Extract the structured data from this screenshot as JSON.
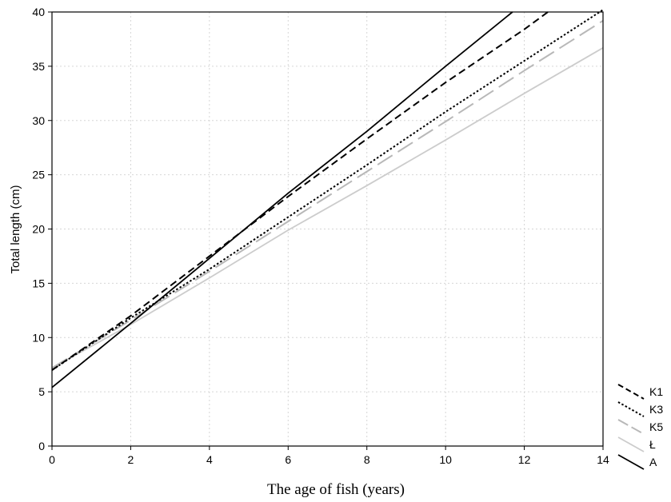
{
  "chart_data": {
    "type": "line",
    "xlabel": "The age of fish (years)",
    "ylabel": "Total length  (cm)",
    "xlim": [
      0,
      14
    ],
    "ylim": [
      0,
      40
    ],
    "xticks": [
      0,
      2,
      4,
      6,
      8,
      10,
      12,
      14
    ],
    "yticks": [
      0,
      5,
      10,
      15,
      20,
      25,
      30,
      35,
      40
    ],
    "grid": true,
    "legend_position": "bottom-right, outside plot",
    "series": [
      {
        "name": "K1",
        "style": "dashed",
        "color": "#000000",
        "x": [
          0,
          2,
          4,
          6,
          8,
          10,
          12,
          12.6
        ],
        "y": [
          7.0,
          12.0,
          17.5,
          23.0,
          28.3,
          33.5,
          38.4,
          40.0
        ]
      },
      {
        "name": "K3",
        "style": "dotted",
        "color": "#000000",
        "x": [
          0,
          2,
          4,
          6,
          8,
          10,
          12,
          14
        ],
        "y": [
          7.0,
          11.8,
          16.3,
          21.1,
          25.9,
          30.8,
          35.5,
          40.2
        ]
      },
      {
        "name": "K5",
        "style": "long-dash",
        "color": "#b8b8b8",
        "x": [
          0,
          2,
          4,
          6,
          8,
          10,
          12,
          14
        ],
        "y": [
          7.2,
          11.6,
          16.1,
          20.7,
          25.3,
          29.9,
          34.6,
          39.2
        ]
      },
      {
        "name": "Ł",
        "style": "solid",
        "color": "#cccccc",
        "x": [
          0,
          2,
          4,
          6,
          8,
          10,
          12,
          14
        ],
        "y": [
          7.2,
          11.2,
          15.5,
          19.9,
          24.0,
          28.2,
          32.5,
          36.7
        ]
      },
      {
        "name": "A",
        "style": "solid",
        "color": "#000000",
        "x": [
          0,
          2,
          4,
          6,
          8,
          10,
          11.7
        ],
        "y": [
          5.4,
          11.3,
          17.3,
          23.3,
          29.0,
          35.0,
          40.0
        ]
      }
    ]
  }
}
